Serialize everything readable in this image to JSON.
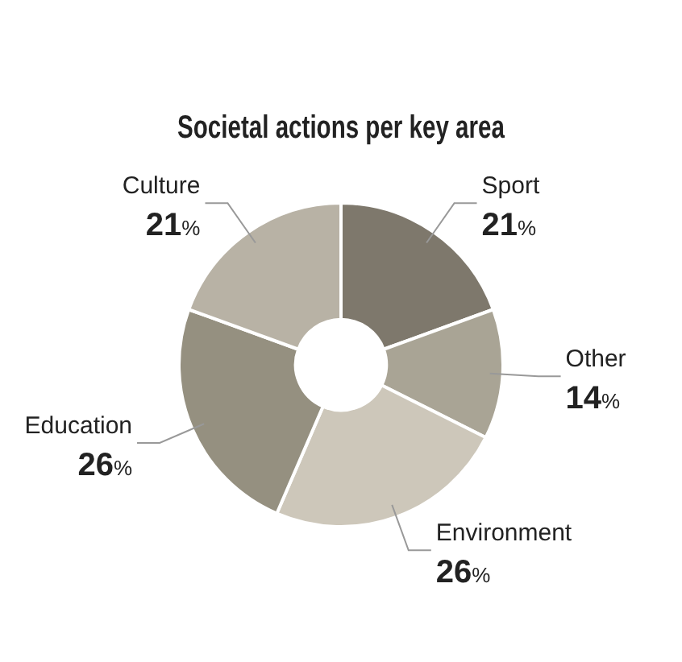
{
  "chart_data": {
    "type": "donut",
    "title": "Societal actions per key area",
    "categories": [
      "Sport",
      "Other",
      "Environment",
      "Education",
      "Culture"
    ],
    "values": [
      21,
      14,
      26,
      26,
      21
    ],
    "value_labels": [
      "21%",
      "14%",
      "26%",
      "26%",
      "21%"
    ],
    "colors": [
      "#7e786c",
      "#a9a495",
      "#cdc7ba",
      "#959080",
      "#b8b2a5"
    ],
    "legend": false
  }
}
